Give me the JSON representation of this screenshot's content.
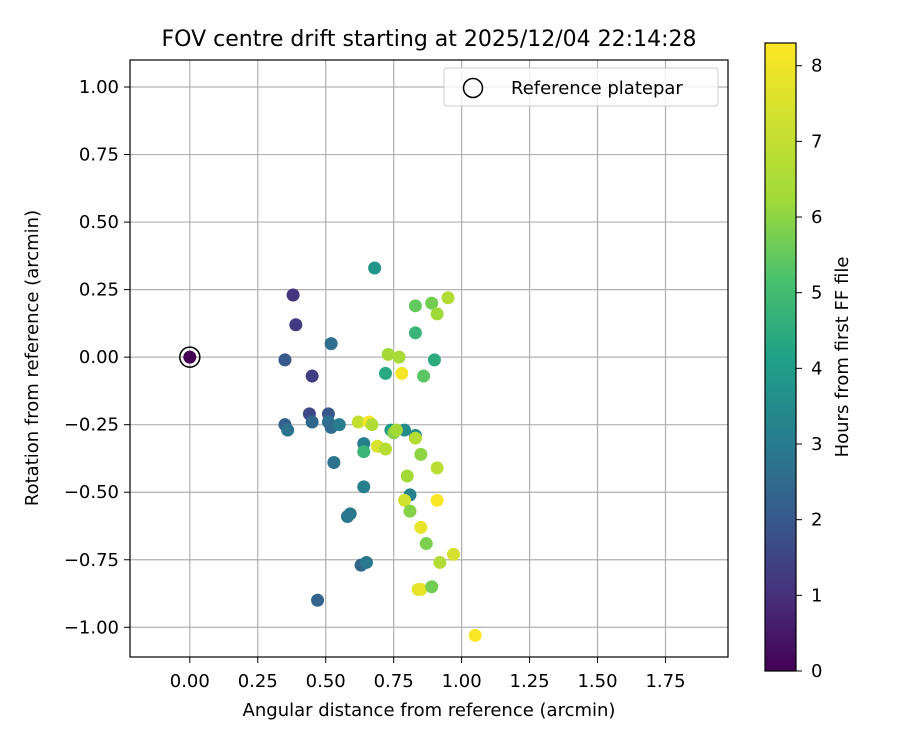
{
  "chart_data": {
    "type": "scatter",
    "title": "FOV centre drift starting at 2025/12/04 22:14:28",
    "xlabel": "Angular distance from reference (arcmin)",
    "ylabel": "Rotation from reference (arcmin)",
    "xlim": [
      -0.22,
      1.98
    ],
    "ylim": [
      -1.11,
      1.1
    ],
    "xticks": [
      "0.00",
      "0.25",
      "0.50",
      "0.75",
      "1.00",
      "1.25",
      "1.50",
      "1.75"
    ],
    "yticks": [
      "1.00",
      "0.75",
      "0.50",
      "0.25",
      "0.00",
      "−0.25",
      "−0.50",
      "−0.75",
      "−1.00"
    ],
    "grid": true,
    "legend": {
      "position": "top-right",
      "entries": [
        "Reference platepar"
      ]
    },
    "colorbar": {
      "label": "Hours from first FF file",
      "range": [
        0,
        8.3
      ],
      "ticks": [
        "0",
        "1",
        "2",
        "3",
        "4",
        "5",
        "6",
        "7",
        "8"
      ],
      "colormap": "viridis"
    },
    "reference": {
      "x": 0.0,
      "y": 0.0,
      "hours": 0.0
    },
    "points": [
      {
        "x": 0.38,
        "y": 0.23,
        "h": 1.1
      },
      {
        "x": 0.39,
        "y": 0.12,
        "h": 1.2
      },
      {
        "x": 0.35,
        "y": -0.01,
        "h": 2.0
      },
      {
        "x": 0.45,
        "y": -0.07,
        "h": 1.3
      },
      {
        "x": 0.44,
        "y": -0.21,
        "h": 1.6
      },
      {
        "x": 0.51,
        "y": -0.21,
        "h": 1.9
      },
      {
        "x": 0.35,
        "y": -0.25,
        "h": 2.2
      },
      {
        "x": 0.36,
        "y": -0.27,
        "h": 2.8
      },
      {
        "x": 0.45,
        "y": -0.24,
        "h": 2.4
      },
      {
        "x": 0.51,
        "y": -0.24,
        "h": 2.7
      },
      {
        "x": 0.52,
        "y": -0.26,
        "h": 2.5
      },
      {
        "x": 0.55,
        "y": -0.25,
        "h": 3.0
      },
      {
        "x": 0.52,
        "y": 0.05,
        "h": 2.6
      },
      {
        "x": 0.53,
        "y": -0.39,
        "h": 2.8
      },
      {
        "x": 0.58,
        "y": -0.59,
        "h": 2.8
      },
      {
        "x": 0.59,
        "y": -0.58,
        "h": 2.9
      },
      {
        "x": 0.47,
        "y": -0.9,
        "h": 2.3
      },
      {
        "x": 0.63,
        "y": -0.77,
        "h": 2.4
      },
      {
        "x": 0.65,
        "y": -0.76,
        "h": 2.9
      },
      {
        "x": 0.64,
        "y": -0.48,
        "h": 3.1
      },
      {
        "x": 0.64,
        "y": -0.32,
        "h": 3.1
      },
      {
        "x": 0.68,
        "y": 0.33,
        "h": 3.8
      },
      {
        "x": 0.72,
        "y": -0.06,
        "h": 4.4
      },
      {
        "x": 0.74,
        "y": -0.27,
        "h": 3.9
      },
      {
        "x": 0.79,
        "y": -0.27,
        "h": 3.5
      },
      {
        "x": 0.81,
        "y": -0.51,
        "h": 3.2
      },
      {
        "x": 0.83,
        "y": -0.29,
        "h": 3.6
      },
      {
        "x": 0.64,
        "y": -0.35,
        "h": 4.8
      },
      {
        "x": 0.73,
        "y": 0.01,
        "h": 6.3
      },
      {
        "x": 0.77,
        "y": 0.0,
        "h": 6.4
      },
      {
        "x": 0.78,
        "y": -0.06,
        "h": 8.1
      },
      {
        "x": 0.83,
        "y": 0.09,
        "h": 4.8
      },
      {
        "x": 0.83,
        "y": 0.19,
        "h": 5.5
      },
      {
        "x": 0.86,
        "y": -0.07,
        "h": 5.4
      },
      {
        "x": 0.89,
        "y": 0.2,
        "h": 5.7
      },
      {
        "x": 0.9,
        "y": -0.01,
        "h": 4.5
      },
      {
        "x": 0.91,
        "y": 0.16,
        "h": 6.2
      },
      {
        "x": 0.95,
        "y": 0.22,
        "h": 6.6
      },
      {
        "x": 0.62,
        "y": -0.24,
        "h": 7.0
      },
      {
        "x": 0.66,
        "y": -0.24,
        "h": 8.2
      },
      {
        "x": 0.67,
        "y": -0.25,
        "h": 6.6
      },
      {
        "x": 0.69,
        "y": -0.33,
        "h": 7.5
      },
      {
        "x": 0.72,
        "y": -0.34,
        "h": 6.7
      },
      {
        "x": 0.75,
        "y": -0.28,
        "h": 5.9
      },
      {
        "x": 0.76,
        "y": -0.27,
        "h": 6.3
      },
      {
        "x": 0.83,
        "y": -0.3,
        "h": 6.7
      },
      {
        "x": 0.85,
        "y": -0.36,
        "h": 6.0
      },
      {
        "x": 0.8,
        "y": -0.44,
        "h": 6.3
      },
      {
        "x": 0.79,
        "y": -0.53,
        "h": 7.3
      },
      {
        "x": 0.81,
        "y": -0.57,
        "h": 5.9
      },
      {
        "x": 0.91,
        "y": -0.41,
        "h": 6.8
      },
      {
        "x": 0.91,
        "y": -0.53,
        "h": 8.2
      },
      {
        "x": 0.85,
        "y": -0.63,
        "h": 7.8
      },
      {
        "x": 0.87,
        "y": -0.69,
        "h": 5.8
      },
      {
        "x": 0.92,
        "y": -0.76,
        "h": 6.6
      },
      {
        "x": 0.97,
        "y": -0.73,
        "h": 7.4
      },
      {
        "x": 0.84,
        "y": -0.86,
        "h": 7.6
      },
      {
        "x": 0.85,
        "y": -0.86,
        "h": 7.8
      },
      {
        "x": 0.89,
        "y": -0.85,
        "h": 5.7
      },
      {
        "x": 1.05,
        "y": -1.03,
        "h": 8.2
      }
    ]
  }
}
